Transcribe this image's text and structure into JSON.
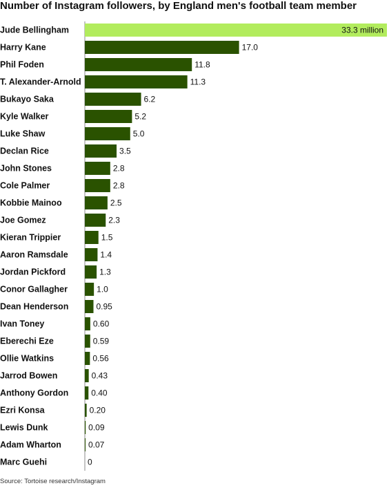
{
  "chart_data": {
    "type": "bar",
    "orientation": "horizontal",
    "title": "Number of Instagram followers, by England men's football team member",
    "source": "Source: Tortoise research/Instagram",
    "categories": [
      "Jude Bellingham",
      "Harry Kane",
      "Phil Foden",
      "T. Alexander-Arnold",
      "Bukayo Saka",
      "Kyle Walker",
      "Luke Shaw",
      "Declan Rice",
      "John Stones",
      "Cole Palmer",
      "Kobbie Mainoo",
      "Joe Gomez",
      "Kieran Trippier",
      "Aaron Ramsdale",
      "Jordan Pickford",
      "Conor Gallagher",
      "Dean Henderson",
      "Ivan Toney",
      "Eberechi Eze",
      "Ollie Watkins",
      "Jarrod Bowen",
      "Anthony Gordon",
      "Ezri Konsa",
      "Lewis Dunk",
      "Adam Wharton",
      "Marc Guehi"
    ],
    "values": [
      33.3,
      17.0,
      11.8,
      11.3,
      6.2,
      5.2,
      5.0,
      3.5,
      2.8,
      2.8,
      2.5,
      2.3,
      1.5,
      1.4,
      1.3,
      1.0,
      0.95,
      0.6,
      0.59,
      0.56,
      0.43,
      0.4,
      0.2,
      0.09,
      0.07,
      0
    ],
    "value_labels": [
      "33.3 million",
      "17.0",
      "11.8",
      "11.3",
      "6.2",
      "5.2",
      "5.0",
      "3.5",
      "2.8",
      "2.8",
      "2.5",
      "2.3",
      "1.5",
      "1.4",
      "1.3",
      "1.0",
      "0.95",
      "0.60",
      "0.59",
      "0.56",
      "0.43",
      "0.40",
      "0.20",
      "0.09",
      "0.07",
      "0"
    ],
    "xlim": [
      0,
      33.3
    ],
    "xlabel": "",
    "ylabel": "",
    "grid": false,
    "colors": {
      "highlight": "#b2ec5d",
      "bar": "#2a5200",
      "axis": "#888888"
    }
  }
}
